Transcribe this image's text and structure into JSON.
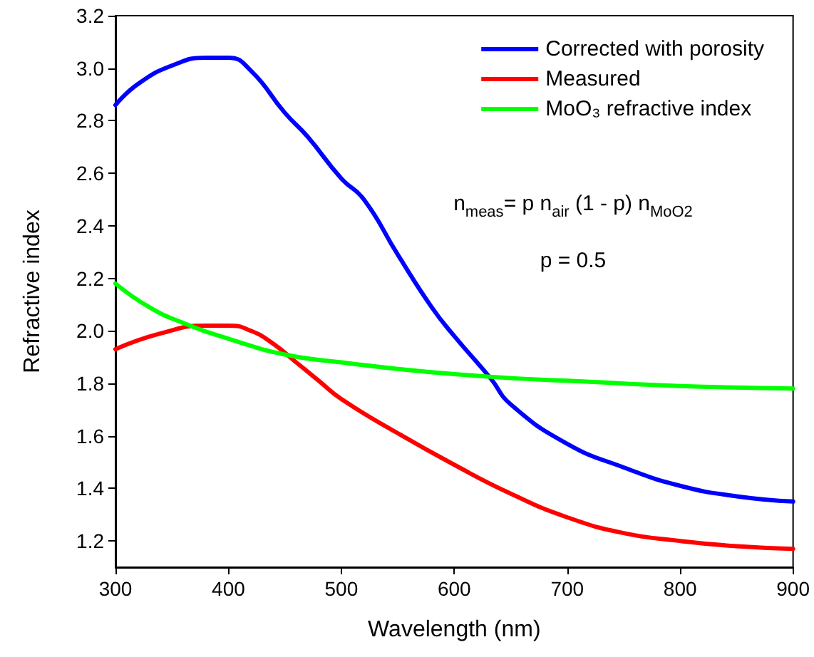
{
  "chart_data": {
    "type": "line",
    "xlabel": "Wavelength (nm)",
    "ylabel": "Refractive index",
    "xlim": [
      300,
      900
    ],
    "xticks": [
      300,
      400,
      500,
      600,
      700,
      800,
      900
    ],
    "ylim": [
      1.1,
      3.2
    ],
    "yticks": [
      1.2,
      1.4,
      1.6,
      1.8,
      {
        "value": 2,
        "label": "2.0"
      },
      2.2,
      2.4,
      2.6,
      2.8,
      {
        "value": 3,
        "label": "3.0"
      },
      3.2
    ],
    "grid": false,
    "legend": "top right",
    "marker": "none",
    "line_style": "solid",
    "annotations": [
      "n$_{meas}$= p n$_{air}$ (1 - p) n$_{MoO2}$",
      "p = 0.5"
    ],
    "series": [
      {
        "name": "Corrected with porosity",
        "color": "#0000ff",
        "x": [
          300,
          320,
          350,
          380,
          400,
          420,
          450,
          470,
          500,
          520,
          550,
          580,
          600,
          632,
          650,
          700,
          750,
          800,
          850,
          900
        ],
        "values": [
          2.86,
          2.94,
          3.01,
          3.04,
          3.04,
          2.99,
          2.83,
          2.74,
          2.58,
          2.5,
          2.29,
          2.09,
          1.98,
          1.82,
          1.72,
          1.57,
          1.48,
          1.41,
          1.37,
          1.35
        ]
      },
      {
        "name": "Measured",
        "color": "#ff0000",
        "x": [
          300,
          340,
          380,
          400,
          420,
          440,
          460,
          480,
          500,
          550,
          600,
          650,
          700,
          750,
          800,
          850,
          900
        ],
        "values": [
          1.93,
          1.99,
          2.02,
          2.02,
          2.0,
          1.95,
          1.88,
          1.81,
          1.74,
          1.61,
          1.49,
          1.38,
          1.29,
          1.23,
          1.2,
          1.18,
          1.17
        ]
      },
      {
        "name": "MoO₃ refractive index",
        "color": "#00ff00",
        "x": [
          300,
          330,
          360,
          400,
          450,
          500,
          550,
          600,
          650,
          700,
          800,
          900
        ],
        "values": [
          2.18,
          2.09,
          2.03,
          1.97,
          1.91,
          1.88,
          1.855,
          1.835,
          1.82,
          1.81,
          1.79,
          1.78
        ]
      }
    ]
  }
}
